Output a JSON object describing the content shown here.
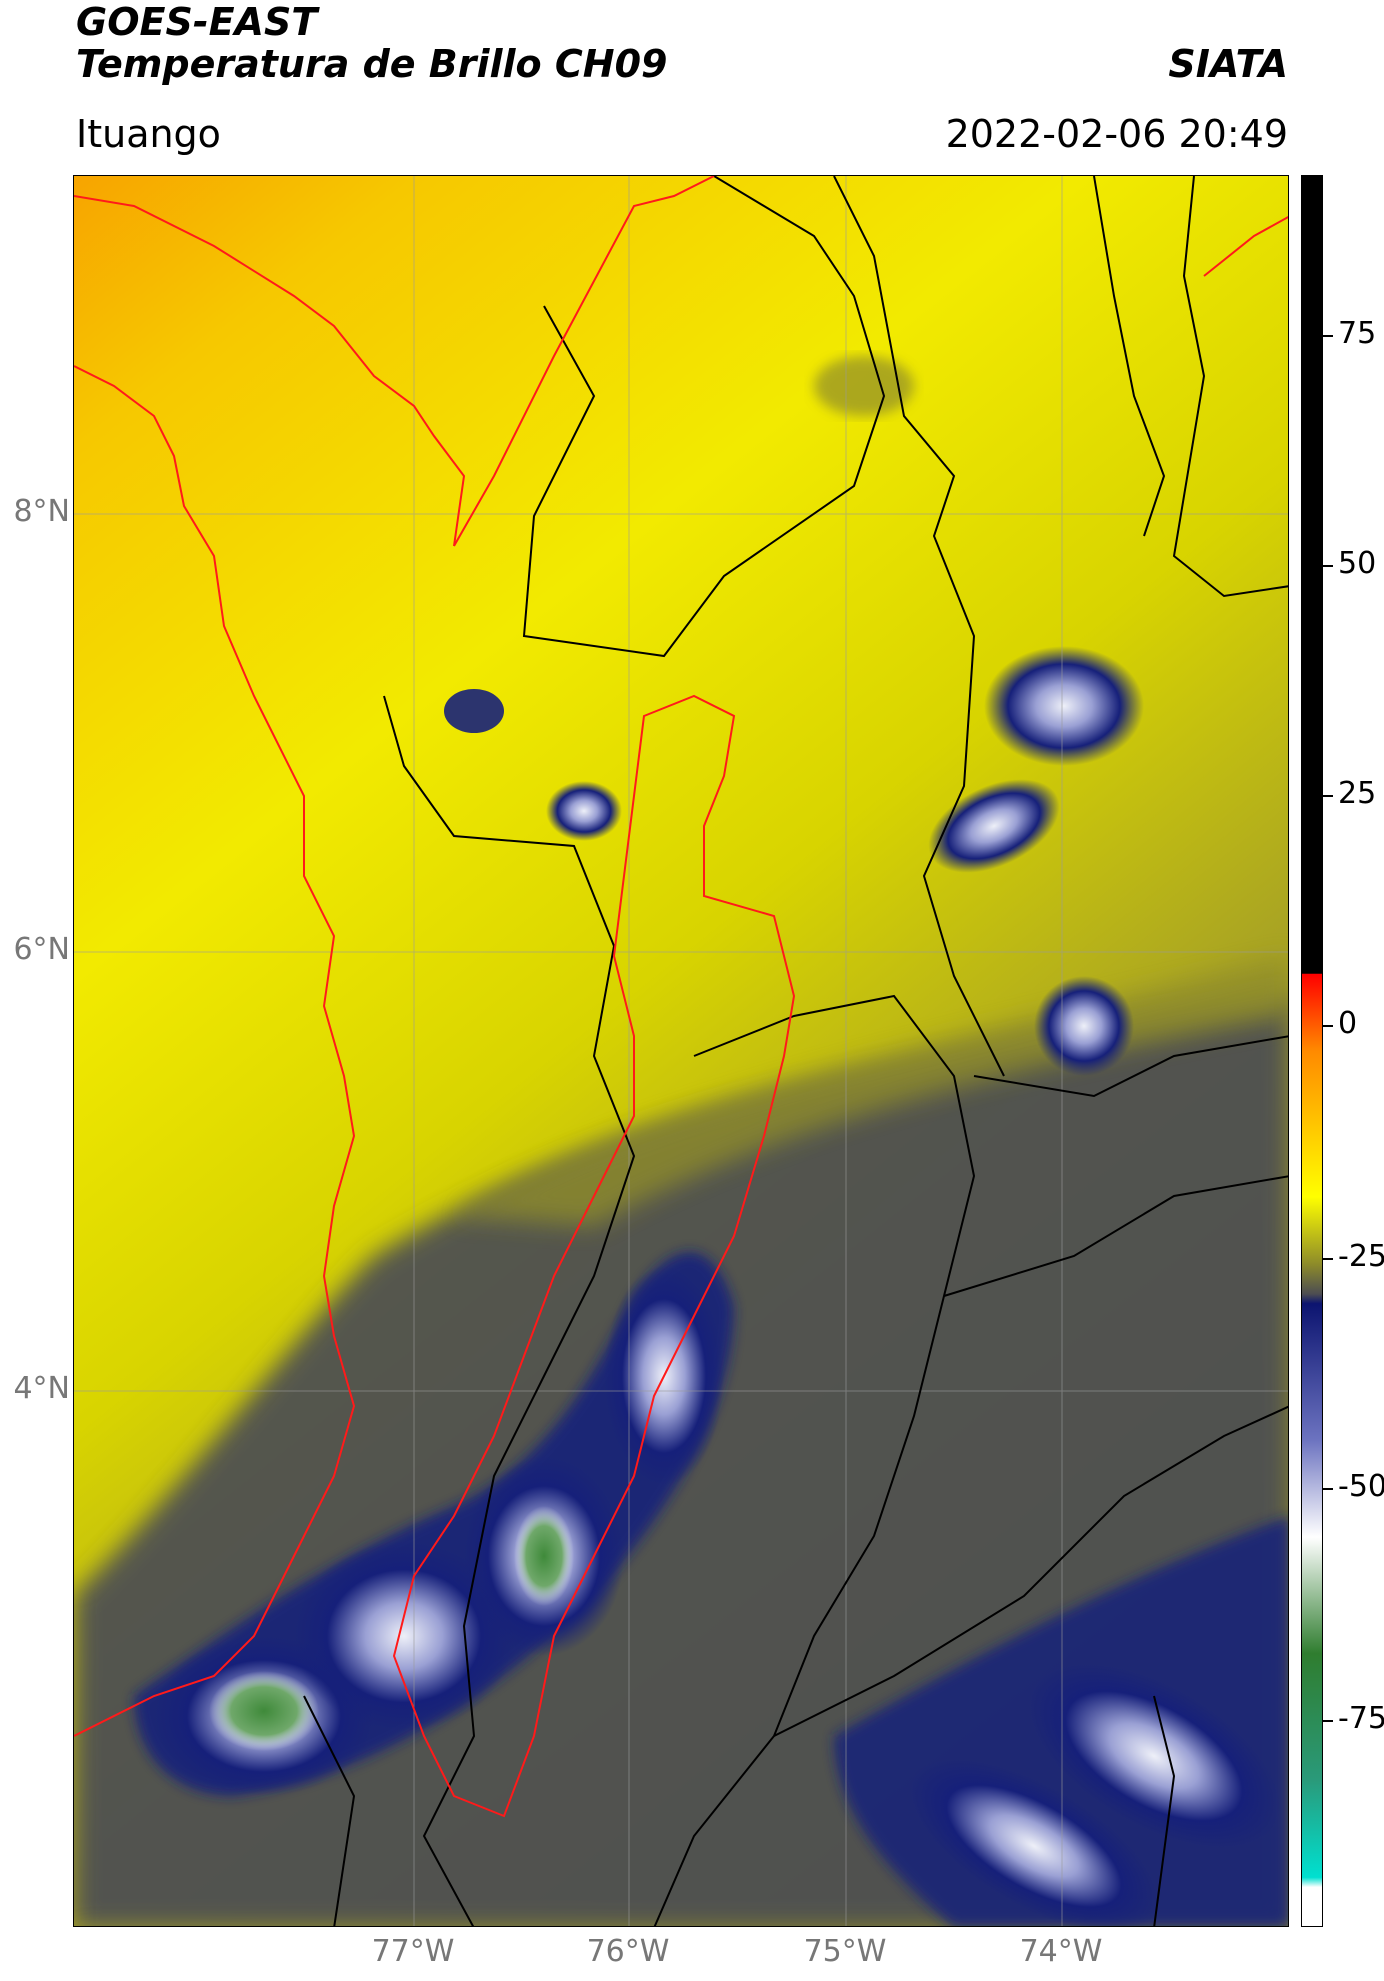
{
  "header": {
    "title_line1": "GOES-EAST",
    "title_line2": "Temperatura de Brillo CH09",
    "brand": "SIATA",
    "location": "Ituango",
    "datetime": "2022-02-06 20:49"
  },
  "map": {
    "longitude_labels": [
      "77°W",
      "76°W",
      "75°W",
      "74°W"
    ],
    "latitude_labels": [
      "8°N",
      "6°N",
      "4°N"
    ],
    "colors": {
      "warm_orange": "#f7a400",
      "warm_yellow": "#f2ea00",
      "olive": "#8f8c2a",
      "cool_gray": "#4c4d52",
      "cold_navy": "#16207a",
      "cold_blue": "#5a63b8",
      "cold_white": "#eef0f8",
      "coldest_green": "#3f8a3a",
      "boundary_black": "#000000",
      "watershed_red": "#ff1a1a"
    }
  },
  "colorbar": {
    "tick_labels": [
      "75",
      "50",
      "25",
      "0",
      "-25",
      "-50",
      "-75"
    ],
    "stops": [
      {
        "value": 90,
        "color": "#000000"
      },
      {
        "value": 8,
        "color": "#000000"
      },
      {
        "value": 7.9,
        "color": "#ff0000"
      },
      {
        "value": 0,
        "color": "#ff8a00"
      },
      {
        "value": -15,
        "color": "#ffff00"
      },
      {
        "value": -22,
        "color": "#8c8a2a"
      },
      {
        "value": -25,
        "color": "#4c4d52"
      },
      {
        "value": -26,
        "color": "#0c1470"
      },
      {
        "value": -40,
        "color": "#6c73c0"
      },
      {
        "value": -50,
        "color": "#ffffff"
      },
      {
        "value": -62,
        "color": "#2f7d2f"
      },
      {
        "value": -75,
        "color": "#2a9a7a"
      },
      {
        "value": -85,
        "color": "#00e0d0"
      },
      {
        "value": -86,
        "color": "#ffffff"
      },
      {
        "value": -90,
        "color": "#ffffff"
      }
    ]
  }
}
